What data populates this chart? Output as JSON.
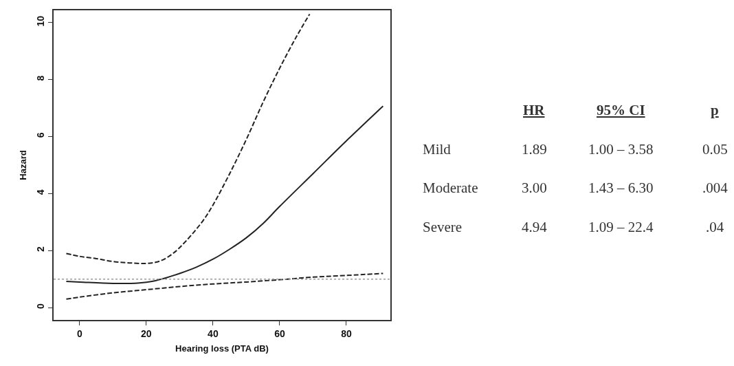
{
  "chart_data": {
    "type": "line",
    "xlabel": "Hearing loss (PTA dB)",
    "ylabel": "Hazard",
    "xlim": [
      -7.8,
      93.2
    ],
    "ylim": [
      -0.43,
      10.43
    ],
    "xticks": [
      0,
      20,
      40,
      60,
      80
    ],
    "yticks": [
      0,
      2,
      4,
      6,
      8,
      10
    ],
    "series": [
      {
        "color": "#222222",
        "line_style": "solid",
        "x": [
          -4,
          0,
          10,
          18,
          22,
          26,
          30,
          35,
          40,
          45,
          50,
          55,
          60,
          70,
          80,
          91
        ],
        "values": [
          0.92,
          0.9,
          0.85,
          0.87,
          0.93,
          1.05,
          1.2,
          1.42,
          1.7,
          2.05,
          2.45,
          2.95,
          3.55,
          4.7,
          5.85,
          7.07
        ]
      },
      {
        "color": "#222222",
        "line_style": "dashed",
        "x": [
          -4,
          0,
          5,
          10,
          15,
          20,
          24,
          28,
          32,
          37,
          40,
          45,
          50,
          55,
          60,
          65,
          69
        ],
        "values": [
          1.9,
          1.8,
          1.72,
          1.62,
          1.57,
          1.55,
          1.63,
          1.9,
          2.35,
          3.05,
          3.6,
          4.7,
          5.9,
          7.2,
          8.4,
          9.5,
          10.3
        ]
      },
      {
        "color": "#222222",
        "line_style": "dashed",
        "x": [
          -4,
          0,
          10,
          20,
          30,
          40,
          50,
          60,
          70,
          80,
          91
        ],
        "values": [
          0.3,
          0.37,
          0.52,
          0.63,
          0.74,
          0.83,
          0.9,
          0.98,
          1.07,
          1.13,
          1.2
        ]
      }
    ],
    "ref_lines": [
      {
        "axis": "y",
        "value": 1,
        "color": "#999999",
        "line_style": "dotted"
      }
    ],
    "annotations": [
      "HR",
      "95% CI",
      "p",
      "Mild",
      "1.89",
      "1.00 – 3.58",
      "0.05",
      "Moderate",
      "3.00",
      "1.43 – 6.30",
      ".004",
      "Severe",
      "4.94",
      "1.09 – 22.4",
      ".04"
    ]
  }
}
